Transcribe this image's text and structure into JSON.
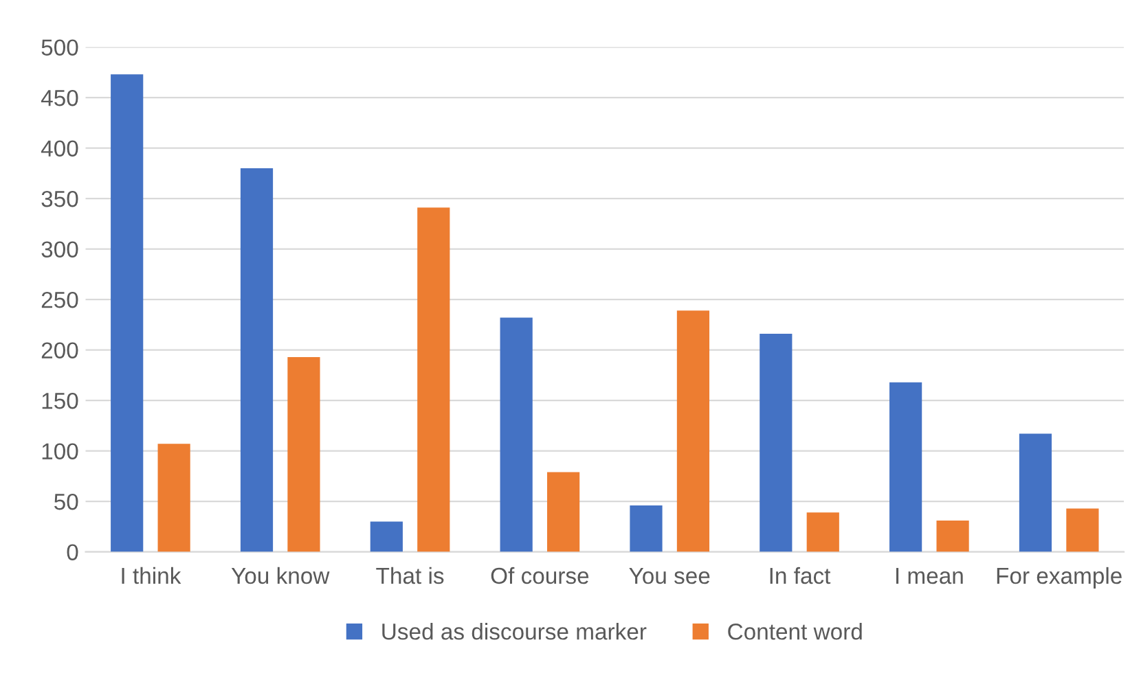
{
  "chart_data": {
    "type": "bar",
    "categories": [
      "I think",
      "You know",
      "That is",
      "Of course",
      "You see",
      "In fact",
      "I mean",
      "For example"
    ],
    "series": [
      {
        "name": "Used as discourse marker",
        "color": "#4472c4",
        "values": [
          473,
          380,
          30,
          232,
          46,
          216,
          168,
          117
        ]
      },
      {
        "name": "Content word",
        "color": "#ed7d31",
        "values": [
          107,
          193,
          341,
          79,
          239,
          39,
          31,
          43
        ]
      }
    ],
    "ylim": [
      0,
      500
    ],
    "yticks": [
      0,
      50,
      100,
      150,
      200,
      250,
      300,
      350,
      400,
      450,
      500
    ],
    "grid": "y",
    "legend": "bottom"
  }
}
